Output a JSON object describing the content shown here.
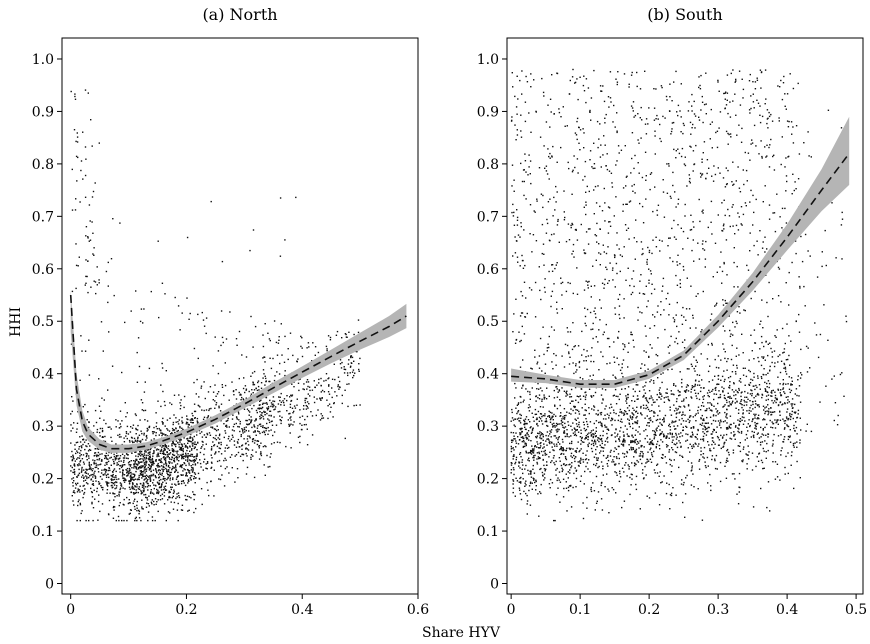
{
  "figure": {
    "xlabel": "Share HYV",
    "ylabel": "HHI",
    "colors": {
      "points": "#111111",
      "band": "#b5b5b5",
      "fit": "#111111"
    }
  },
  "chart_data": [
    {
      "type": "scatter",
      "title": "(a) North",
      "xlabel": "Share HYV",
      "ylabel": "HHI",
      "xlim": [
        -0.015,
        0.6
      ],
      "ylim": [
        -0.02,
        1.04
      ],
      "xticks": [
        0,
        0.2,
        0.4,
        0.6
      ],
      "xtick_labels": [
        "0",
        "0.2",
        "0.4",
        "0.6"
      ],
      "yticks": [
        0,
        0.1,
        0.2,
        0.3,
        0.4,
        0.5,
        0.6,
        0.7,
        0.8,
        0.9,
        1.0
      ],
      "ytick_labels": [
        "0",
        "0.1",
        "0.2",
        "0.3",
        "0.4",
        "0.5",
        "0.6",
        "0.7",
        "0.8",
        "0.9",
        "1.0"
      ],
      "grid": false,
      "points_note": "dense cloud of ~2500 district-year observations",
      "fit": {
        "style": "dashed",
        "x": [
          0.0,
          0.01,
          0.02,
          0.03,
          0.05,
          0.07,
          0.1,
          0.13,
          0.16,
          0.2,
          0.25,
          0.3,
          0.35,
          0.4,
          0.45,
          0.5,
          0.55,
          0.58
        ],
        "y": [
          0.55,
          0.37,
          0.31,
          0.285,
          0.265,
          0.257,
          0.257,
          0.262,
          0.272,
          0.288,
          0.313,
          0.342,
          0.373,
          0.403,
          0.433,
          0.462,
          0.49,
          0.51
        ],
        "ci_lower": [
          0.48,
          0.34,
          0.29,
          0.272,
          0.255,
          0.249,
          0.249,
          0.255,
          0.265,
          0.281,
          0.305,
          0.334,
          0.363,
          0.392,
          0.42,
          0.446,
          0.47,
          0.487
        ],
        "ci_upper": [
          0.56,
          0.4,
          0.33,
          0.298,
          0.275,
          0.265,
          0.265,
          0.269,
          0.279,
          0.295,
          0.321,
          0.35,
          0.383,
          0.414,
          0.446,
          0.478,
          0.51,
          0.533
        ]
      }
    },
    {
      "type": "scatter",
      "title": "(b) South",
      "xlabel": "Share HYV",
      "ylabel": "HHI",
      "xlim": [
        -0.006,
        0.51
      ],
      "ylim": [
        -0.02,
        1.04
      ],
      "xticks": [
        0,
        0.1,
        0.2,
        0.3,
        0.4,
        0.5
      ],
      "xtick_labels": [
        "0",
        "0.1",
        "0.2",
        "0.3",
        "0.4",
        "0.5"
      ],
      "yticks": [
        0,
        0.1,
        0.2,
        0.3,
        0.4,
        0.5,
        0.6,
        0.7,
        0.8,
        0.9,
        1.0
      ],
      "ytick_labels": [
        "0",
        "0.1",
        "0.2",
        "0.3",
        "0.4",
        "0.5",
        "0.6",
        "0.7",
        "0.8",
        "0.9",
        "1.0"
      ],
      "grid": false,
      "points_note": "dense cloud of ~3500 district-year observations",
      "fit": {
        "style": "dashed",
        "x": [
          0.0,
          0.05,
          0.1,
          0.15,
          0.2,
          0.25,
          0.3,
          0.35,
          0.4,
          0.45,
          0.49
        ],
        "y": [
          0.395,
          0.39,
          0.38,
          0.38,
          0.398,
          0.435,
          0.5,
          0.575,
          0.66,
          0.75,
          0.82
        ],
        "ci_lower": [
          0.385,
          0.382,
          0.373,
          0.373,
          0.39,
          0.426,
          0.488,
          0.558,
          0.635,
          0.71,
          0.76
        ],
        "ci_upper": [
          0.41,
          0.398,
          0.388,
          0.388,
          0.406,
          0.444,
          0.512,
          0.592,
          0.685,
          0.79,
          0.89
        ]
      }
    }
  ]
}
